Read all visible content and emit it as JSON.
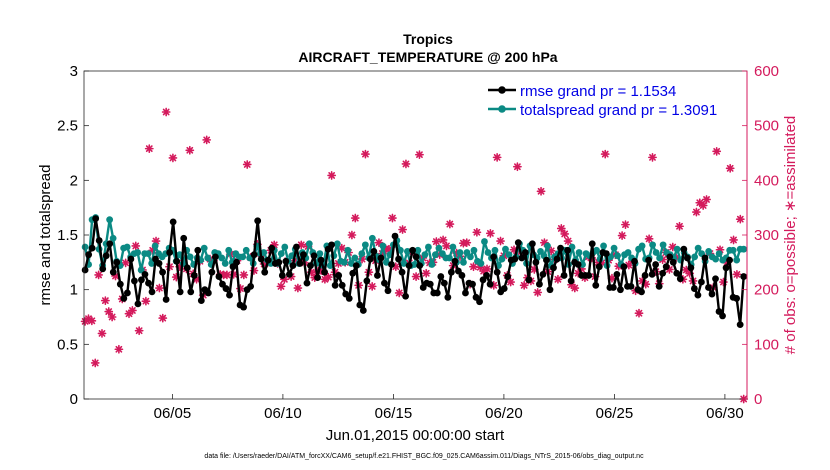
{
  "chart_data": {
    "type": "line",
    "title": "Tropics",
    "subtitle": "AIRCRAFT_TEMPERATURE @ 200 hPa",
    "xlabel": "Jun.01,2015 00:00:00 start",
    "ylabel_left": "rmse and totalspread",
    "ylabel_right": "# of obs: o=possible; ∗=assimilated",
    "xlim": [
      1,
      31
    ],
    "ylim_left": [
      0,
      3
    ],
    "ylim_right": [
      0,
      600
    ],
    "x_ticks": [
      5,
      10,
      15,
      20,
      25,
      30
    ],
    "x_tick_labels": [
      "06/05",
      "06/10",
      "06/15",
      "06/20",
      "06/25",
      "06/30"
    ],
    "y_left_ticks": [
      "0",
      "0.5",
      "1",
      "1.5",
      "2",
      "2.5",
      "3"
    ],
    "y_right_ticks": [
      "0",
      "100",
      "200",
      "300",
      "400",
      "500",
      "600"
    ],
    "legend_position": "top-right",
    "footer": "data file: /Users/raeder/DAI/ATM_forcXX/CAM6_setup/f.e21.FHIST_BGC.f09_025.CAM6assim.011/Diags_NTrS_2015-06/obs_diag_output.nc",
    "colors": {
      "rmse": "#000000",
      "totalspread": "#0b8a84",
      "obs": "#d41a5c",
      "legend_text": "#0000e6",
      "right_axis": "#d41a5c"
    },
    "series": [
      {
        "name": "rmse grand pr = 1.1534",
        "axis": "left",
        "values": [
          1.18,
          1.32,
          1.38,
          1.65,
          1.45,
          1.19,
          1.31,
          1.42,
          1.16,
          1.25,
          1.05,
          0.92,
          0.97,
          1.28,
          1.08,
          0.87,
          1.09,
          1.14,
          1.06,
          0.98,
          1.28,
          1.24,
          1.16,
          0.91,
          1.34,
          1.62,
          1.26,
          0.98,
          1.47,
          1.2,
          0.98,
          1.13,
          1.36,
          0.9,
          1.0,
          0.97,
          1.16,
          1.3,
          1.12,
          1.05,
          1.01,
          0.95,
          1.21,
          1.25,
          0.86,
          0.84,
          1.0,
          1.03,
          1.32,
          1.63,
          1.28,
          1.16,
          1.27,
          1.38,
          1.24,
          1.25,
          1.13,
          1.26,
          1.14,
          1.22,
          1.39,
          1.24,
          1.32,
          1.06,
          1.22,
          1.31,
          1.11,
          1.27,
          1.16,
          1.37,
          1.41,
          1.04,
          1.13,
          1.04,
          0.96,
          0.92,
          1.15,
          1.22,
          0.86,
          0.81,
          1.08,
          1.28,
          1.35,
          1.13,
          1.29,
          1.06,
          0.99,
          1.23,
          1.49,
          1.28,
          1.16,
          0.94,
          1.22,
          1.36,
          1.3,
          1.22,
          1.02,
          1.06,
          1.05,
          0.97,
          0.97,
          1.12,
          1.06,
          0.93,
          1.16,
          1.26,
          1.17,
          1.13,
          0.97,
          1.06,
          1.05,
          0.93,
          0.89,
          1.09,
          1.13,
          1.05,
          1.3,
          1.16,
          0.98,
          1.01,
          1.12,
          1.27,
          1.28,
          1.43,
          1.29,
          1.34,
          1.09,
          1.42,
          1.25,
          1.05,
          1.14,
          1.27,
          1.0,
          1.2,
          1.28,
          1.38,
          1.13,
          1.36,
          1.08,
          1.25,
          1.23,
          1.13,
          1.13,
          1.13,
          1.42,
          1.04,
          1.21,
          1.34,
          1.33,
          1.02,
          1.02,
          1.14,
          1.0,
          1.21,
          1.03,
          1.03,
          1.26,
          1.0,
          0.98,
          1.13,
          1.27,
          1.14,
          1.23,
          1.03,
          1.15,
          1.21,
          1.3,
          1.25,
          1.15,
          1.1,
          1.37,
          1.29,
          1.2,
          1.01,
          0.95,
          1.07,
          1.29,
          1.02,
          0.96,
          1.1,
          0.8,
          0.76,
          1.2,
          1.27,
          0.93,
          0.92,
          0.68,
          1.12
        ]
      },
      {
        "name": "totalspread grand pr = 1.3091",
        "axis": "left",
        "values": [
          1.39,
          1.23,
          1.64,
          1.66,
          1.37,
          1.22,
          1.42,
          1.64,
          1.47,
          1.26,
          1.22,
          1.38,
          1.39,
          1.3,
          1.33,
          1.34,
          1.18,
          1.33,
          1.33,
          1.24,
          1.4,
          1.33,
          1.3,
          1.33,
          1.38,
          1.36,
          1.26,
          1.32,
          1.24,
          1.36,
          1.3,
          1.23,
          1.29,
          1.27,
          1.38,
          1.29,
          1.23,
          1.34,
          1.33,
          1.29,
          1.24,
          1.36,
          1.25,
          1.33,
          1.3,
          1.3,
          1.36,
          1.29,
          1.24,
          1.4,
          1.33,
          1.34,
          1.27,
          1.24,
          1.36,
          1.24,
          1.33,
          1.39,
          1.26,
          1.31,
          1.37,
          1.24,
          1.34,
          1.29,
          1.42,
          1.34,
          1.24,
          1.33,
          1.22,
          1.4,
          1.22,
          1.31,
          1.42,
          1.26,
          1.25,
          1.36,
          1.24,
          1.29,
          1.23,
          1.33,
          1.41,
          1.29,
          1.47,
          1.31,
          1.27,
          1.4,
          1.25,
          1.32,
          1.41,
          1.45,
          1.36,
          1.24,
          1.35,
          1.22,
          1.23,
          1.36,
          1.24,
          1.32,
          1.39,
          1.23,
          1.32,
          1.38,
          1.33,
          1.29,
          1.29,
          1.39,
          1.25,
          1.34,
          1.25,
          1.34,
          1.3,
          1.36,
          1.26,
          1.24,
          1.44,
          1.34,
          1.29,
          1.36,
          1.22,
          1.28,
          1.37,
          1.32,
          1.24,
          1.3,
          1.42,
          1.36,
          1.24,
          1.4,
          1.32,
          1.29,
          1.35,
          1.31,
          1.4,
          1.22,
          1.3,
          1.33,
          1.29,
          1.36,
          1.23,
          1.39,
          1.27,
          1.34,
          1.23,
          1.33,
          1.31,
          1.34,
          1.36,
          1.28,
          1.4,
          1.22,
          1.3,
          1.38,
          1.31,
          1.23,
          1.32,
          1.34,
          1.29,
          1.24,
          1.37,
          1.4,
          1.28,
          1.29,
          1.41,
          1.34,
          1.29,
          1.41,
          1.34,
          1.32,
          1.29,
          1.37,
          1.27,
          1.34,
          1.3,
          1.23,
          1.3,
          1.38,
          1.33,
          1.26,
          1.35,
          1.3,
          1.28,
          1.33,
          1.27,
          1.29,
          1.36,
          1.36,
          1.27,
          1.37,
          1.37
        ]
      }
    ],
    "obs_counts": {
      "name": "# of obs",
      "axis": "right",
      "values": [
        142,
        147,
        143,
        66,
        227,
        120,
        180,
        160,
        150,
        225,
        91,
        183,
        249,
        156,
        162,
        280,
        125,
        236,
        179,
        458,
        272,
        289,
        203,
        148,
        525,
        242,
        441,
        223,
        242,
        249,
        238,
        455,
        229,
        219,
        252,
        190,
        474,
        256,
        253,
        265,
        228,
        227,
        227,
        265,
        228,
        253,
        202,
        227,
        429,
        259,
        235,
        283,
        266,
        247,
        249,
        272,
        282,
        248,
        206,
        219,
        253,
        224,
        253,
        203,
        282,
        249,
        279,
        232,
        222,
        234,
        235,
        219,
        223,
        409,
        232,
        248,
        276,
        250,
        268,
        300,
        331,
        208,
        256,
        448,
        232,
        206,
        253,
        286,
        266,
        275,
        274,
        331,
        242,
        194,
        310,
        430,
        249,
        270,
        224,
        447,
        258,
        230,
        249,
        250,
        288,
        264,
        291,
        280,
        320,
        244,
        267,
        261,
        285,
        286,
        210,
        242,
        305,
        241,
        234,
        238,
        303,
        208,
        442,
        289,
        262,
        226,
        214,
        273,
        425,
        269,
        208,
        222,
        216,
        237,
        195,
        380,
        286,
        233,
        271,
        255,
        219,
        312,
        302,
        289,
        209,
        203,
        230,
        238,
        222,
        260,
        258,
        224,
        250,
        249,
        448,
        254,
        221,
        264,
        243,
        299,
        319,
        245,
        252,
        198,
        157,
        216,
        210,
        293,
        442,
        233,
        211,
        255,
        268,
        237,
        278,
        259,
        316,
        219,
        236,
        230,
        216,
        342,
        359,
        354,
        365,
        266,
        204,
        453,
        273,
        214,
        249,
        422,
        291,
        228,
        329,
        0
      ]
    }
  }
}
